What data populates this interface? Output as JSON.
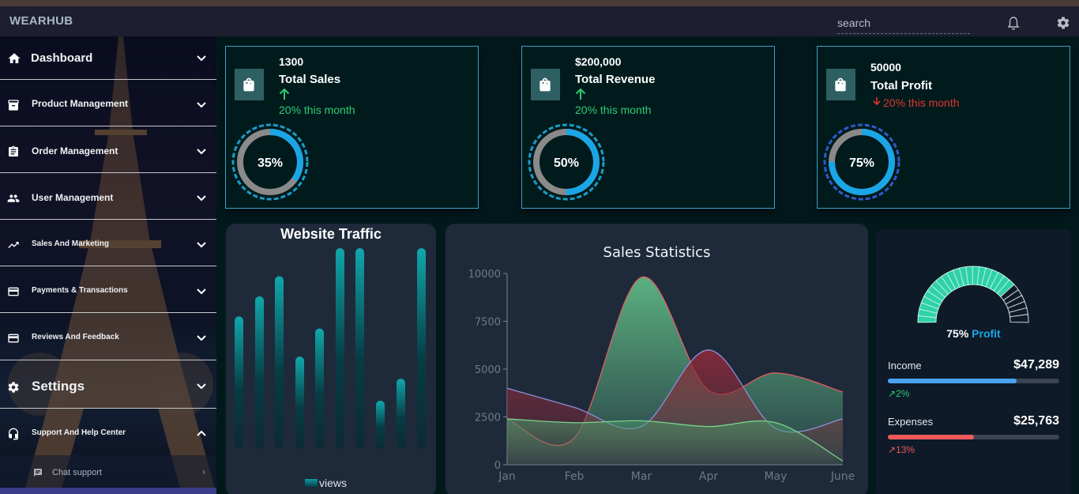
{
  "app": {
    "brand": "WEARHUB"
  },
  "header": {
    "search_placeholder": "search"
  },
  "sidebar": {
    "items": [
      {
        "label": "Dashboard",
        "icon": "home-icon",
        "expanded": false
      },
      {
        "label": "Product Management",
        "icon": "inventory-icon",
        "expanded": false
      },
      {
        "label": "Order Management",
        "icon": "clipboard-icon",
        "expanded": false
      },
      {
        "label": "User Management",
        "icon": "users-icon",
        "expanded": false
      },
      {
        "label": "Sales And Marketing",
        "icon": "trending-up-icon",
        "expanded": false
      },
      {
        "label": "Payments & Transactions",
        "icon": "credit-card-icon",
        "expanded": false
      },
      {
        "label": "Reviews And Feedback",
        "icon": "credit-card-icon",
        "expanded": false
      },
      {
        "label": "Settings",
        "icon": "gear-icon",
        "expanded": false
      },
      {
        "label": "Support And Help Center",
        "icon": "headset-icon",
        "expanded": true
      }
    ],
    "subitem": {
      "label": "Chat support",
      "icon": "chat-icon"
    }
  },
  "cards": [
    {
      "value": "1300",
      "title": "Total Sales",
      "change": "20% this month",
      "direction": "up",
      "change_color": "#2ecc71",
      "percent_label": "35%",
      "percent": 0.35
    },
    {
      "value": "$200,000",
      "title": "Total Revenue",
      "change": "20% this month",
      "direction": "up",
      "change_color": "#2ecc71",
      "percent_label": "50%",
      "percent": 0.5
    },
    {
      "value": "50000",
      "title": "Total Profit",
      "change": "20% this month",
      "direction": "down",
      "change_color": "#e0352b",
      "percent_label": "75%",
      "percent": 0.75
    }
  ],
  "traffic": {
    "title": "Website Traffic",
    "legend": "views",
    "chart_data": {
      "type": "bar",
      "series": [
        {
          "name": "views",
          "values": [
            66,
            76,
            86,
            46,
            60,
            100,
            100,
            24,
            35,
            100
          ]
        }
      ],
      "ylim": [
        0,
        100
      ]
    }
  },
  "stats": {
    "title": "Sales Statistics",
    "chart_data": {
      "type": "area",
      "title": "Sales Statistics",
      "categories": [
        "Jan",
        "Feb",
        "Mar",
        "Apr",
        "May",
        "June"
      ],
      "y_ticks": [
        "0",
        "2500",
        "5000",
        "7500",
        "10000"
      ],
      "ylim": [
        0,
        10000
      ],
      "series": [
        {
          "values": [
            2400,
            1400,
            9800,
            3900,
            4800,
            3800
          ],
          "color": "#e06060"
        },
        {
          "values": [
            4000,
            3000,
            2000,
            6000,
            1900,
            2400
          ],
          "color": "#8b8fd8"
        },
        {
          "values": [
            2400,
            2200,
            2300,
            2000,
            2200,
            200
          ],
          "color": "#7ad28c"
        }
      ]
    }
  },
  "profit": {
    "percent_value": "75%",
    "percent_word": "Profit",
    "percent": 0.75,
    "income": {
      "label": "Income",
      "value": "$47,289",
      "delta": "2%",
      "progress": 0.75,
      "color": "#4aa3f0",
      "delta_color": "#2ecc71"
    },
    "expenses": {
      "label": "Expenses",
      "value": "$25,763",
      "delta": "13%",
      "progress": 0.5,
      "color": "#f05a5a",
      "delta_color": "#f05a5a"
    }
  }
}
